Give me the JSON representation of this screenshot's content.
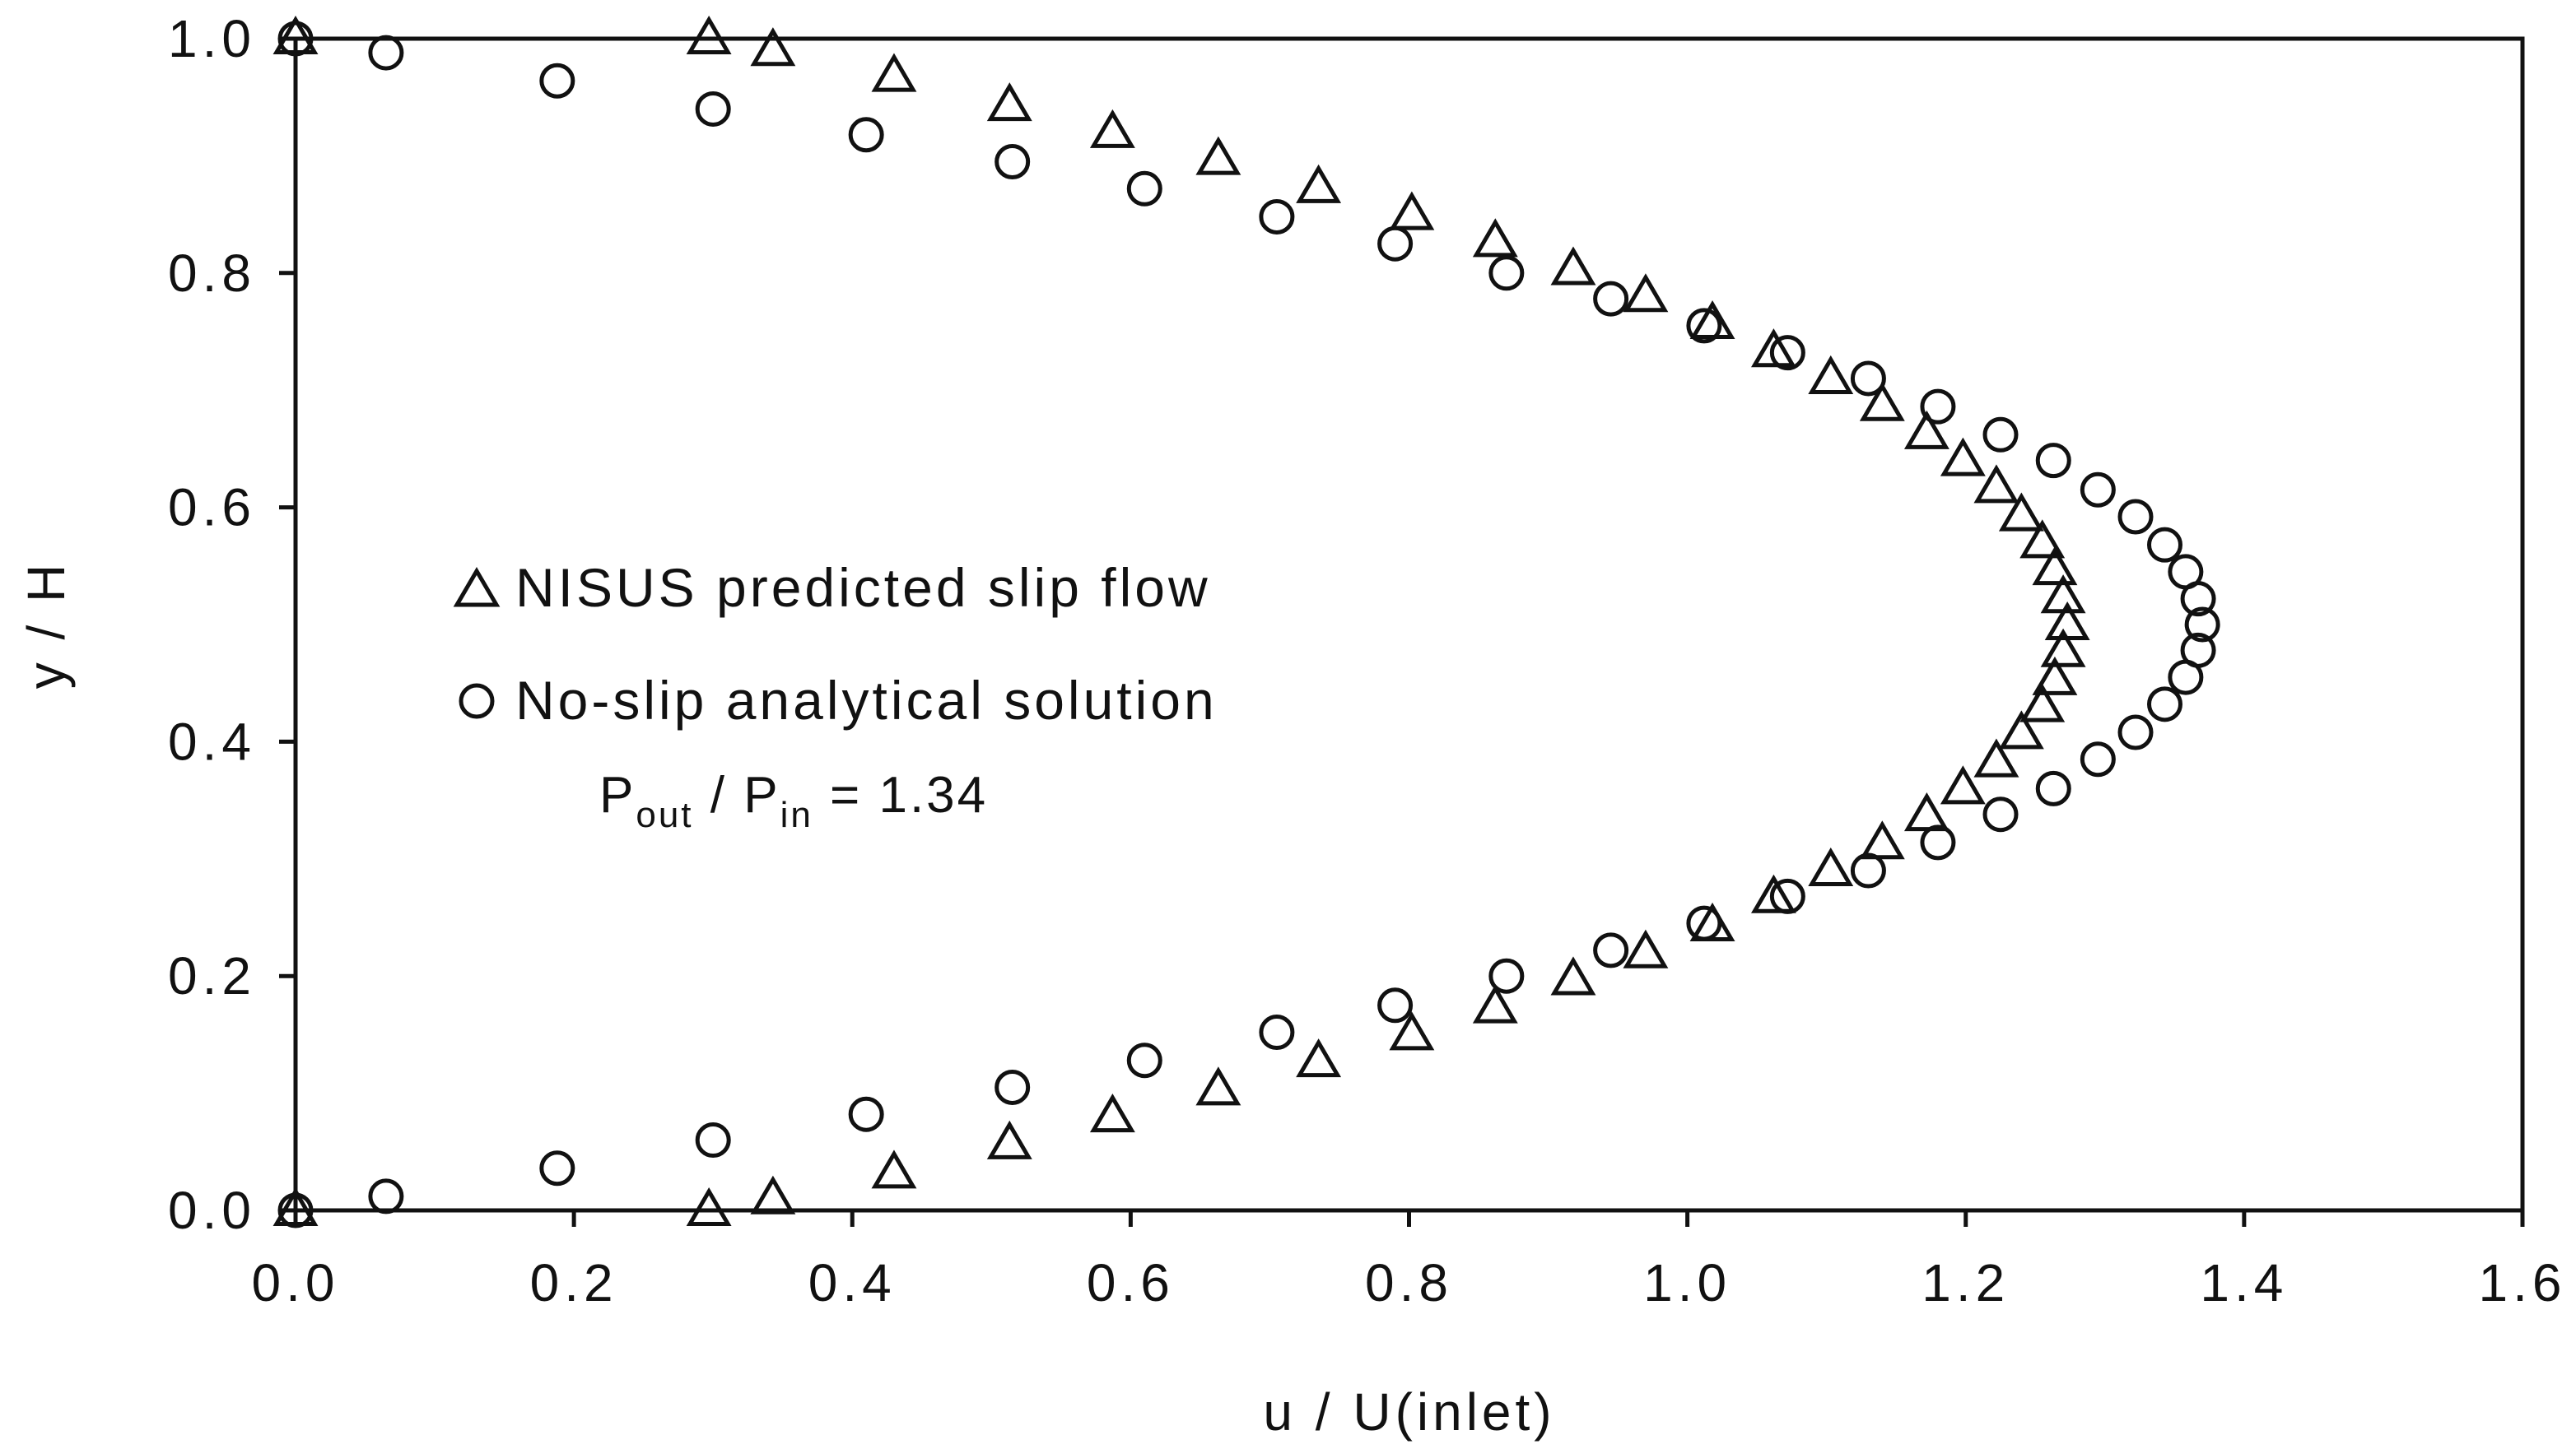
{
  "chart_data": {
    "type": "scatter",
    "title": "",
    "xlabel": "u / U(inlet)",
    "ylabel": "y / H",
    "xlim": [
      0.0,
      1.6
    ],
    "ylim": [
      0.0,
      1.0
    ],
    "xticks": [
      "0.0",
      "0.2",
      "0.4",
      "0.6",
      "0.8",
      "1.0",
      "1.2",
      "1.4",
      "1.6"
    ],
    "yticks": [
      "0.0",
      "0.2",
      "0.4",
      "0.6",
      "0.8",
      "1.0"
    ],
    "grid": false,
    "legend_position": "center-left",
    "series": [
      {
        "name": "NISUS predicted slip flow",
        "marker": "triangle",
        "color": "#111111",
        "points": [
          [
            0.0,
            0.0
          ],
          [
            0.297,
            0.0
          ],
          [
            0.343,
            0.01
          ],
          [
            0.43,
            0.032
          ],
          [
            0.513,
            0.057
          ],
          [
            0.587,
            0.08
          ],
          [
            0.663,
            0.103
          ],
          [
            0.735,
            0.127
          ],
          [
            0.802,
            0.15
          ],
          [
            0.862,
            0.173
          ],
          [
            0.918,
            0.197
          ],
          [
            0.97,
            0.22
          ],
          [
            1.018,
            0.243
          ],
          [
            1.062,
            0.267
          ],
          [
            1.103,
            0.29
          ],
          [
            1.14,
            0.313
          ],
          [
            1.172,
            0.337
          ],
          [
            1.198,
            0.36
          ],
          [
            1.222,
            0.383
          ],
          [
            1.24,
            0.407
          ],
          [
            1.255,
            0.43
          ],
          [
            1.264,
            0.453
          ],
          [
            1.27,
            0.477
          ],
          [
            1.273,
            0.5
          ],
          [
            1.27,
            0.523
          ],
          [
            1.264,
            0.547
          ],
          [
            1.255,
            0.57
          ],
          [
            1.24,
            0.593
          ],
          [
            1.222,
            0.617
          ],
          [
            1.198,
            0.64
          ],
          [
            1.172,
            0.663
          ],
          [
            1.14,
            0.687
          ],
          [
            1.103,
            0.71
          ],
          [
            1.062,
            0.733
          ],
          [
            1.018,
            0.757
          ],
          [
            0.97,
            0.78
          ],
          [
            0.918,
            0.803
          ],
          [
            0.862,
            0.827
          ],
          [
            0.802,
            0.85
          ],
          [
            0.735,
            0.873
          ],
          [
            0.663,
            0.897
          ],
          [
            0.587,
            0.92
          ],
          [
            0.513,
            0.943
          ],
          [
            0.43,
            0.968
          ],
          [
            0.343,
            0.99
          ],
          [
            0.297,
            1.0
          ],
          [
            0.0,
            1.0
          ]
        ]
      },
      {
        "name": "No-slip analytical solution",
        "marker": "circle",
        "color": "#111111",
        "points": [
          [
            0.0,
            0.0
          ],
          [
            0.065,
            0.012
          ],
          [
            0.188,
            0.036
          ],
          [
            0.3,
            0.06
          ],
          [
            0.41,
            0.082
          ],
          [
            0.515,
            0.105
          ],
          [
            0.61,
            0.128
          ],
          [
            0.705,
            0.152
          ],
          [
            0.79,
            0.175
          ],
          [
            0.87,
            0.2
          ],
          [
            0.945,
            0.222
          ],
          [
            1.012,
            0.245
          ],
          [
            1.072,
            0.268
          ],
          [
            1.13,
            0.29
          ],
          [
            1.18,
            0.314
          ],
          [
            1.225,
            0.338
          ],
          [
            1.263,
            0.36
          ],
          [
            1.295,
            0.385
          ],
          [
            1.322,
            0.408
          ],
          [
            1.343,
            0.432
          ],
          [
            1.358,
            0.455
          ],
          [
            1.367,
            0.478
          ],
          [
            1.37,
            0.5
          ],
          [
            1.367,
            0.522
          ],
          [
            1.358,
            0.545
          ],
          [
            1.343,
            0.568
          ],
          [
            1.322,
            0.592
          ],
          [
            1.295,
            0.615
          ],
          [
            1.263,
            0.64
          ],
          [
            1.225,
            0.662
          ],
          [
            1.18,
            0.686
          ],
          [
            1.13,
            0.71
          ],
          [
            1.072,
            0.732
          ],
          [
            1.012,
            0.755
          ],
          [
            0.945,
            0.778
          ],
          [
            0.87,
            0.8
          ],
          [
            0.79,
            0.825
          ],
          [
            0.705,
            0.848
          ],
          [
            0.61,
            0.872
          ],
          [
            0.515,
            0.895
          ],
          [
            0.41,
            0.918
          ],
          [
            0.3,
            0.94
          ],
          [
            0.188,
            0.964
          ],
          [
            0.065,
            0.988
          ],
          [
            0.0,
            1.0
          ]
        ]
      }
    ],
    "annotation": {
      "pout": "P",
      "pout_sub": "out",
      "slash": " / P",
      "pin_sub": "in",
      "rest": " = 1.34"
    }
  }
}
